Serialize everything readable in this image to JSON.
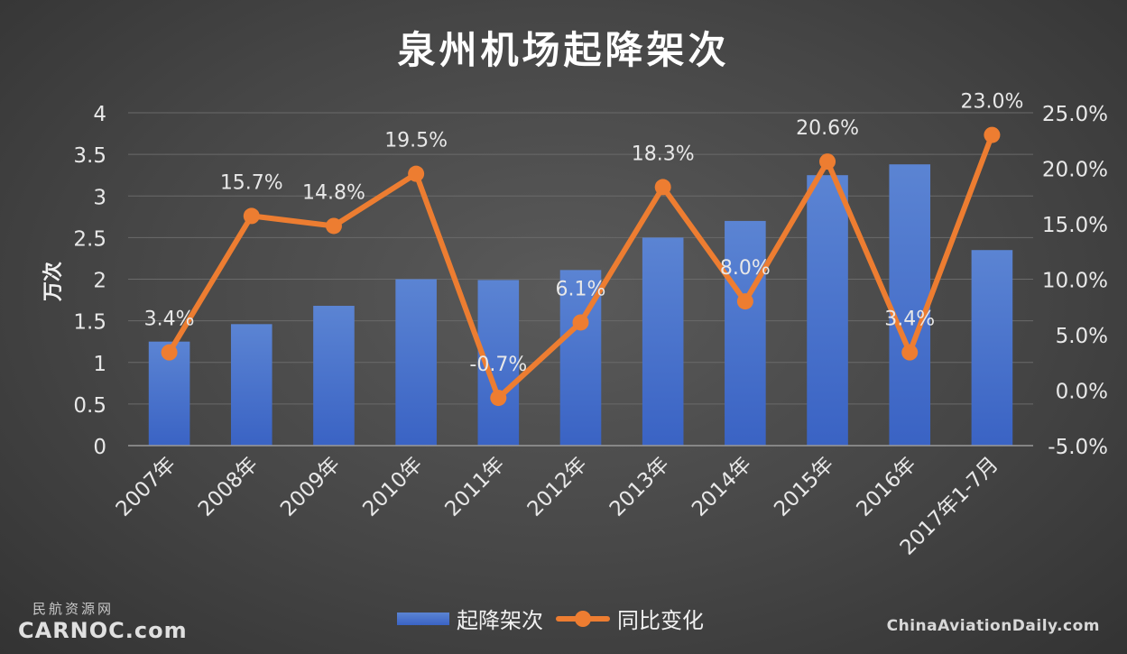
{
  "title": "泉州机场起降架次",
  "left_axis_label": "万次",
  "legend": {
    "bar": "起降架次",
    "line": "同比变化"
  },
  "watermark_left": {
    "cn": "民航资源网",
    "en": "CARNOC.com"
  },
  "watermark_right": "ChinaAviationDaily.com",
  "colors": {
    "bar_top": "#5b84d3",
    "bar_bottom": "#3a63c4",
    "line": "#ed7d31",
    "grid": "#6a6a6a",
    "text": "#e8e8e8"
  },
  "chart_data": {
    "type": "bar+line",
    "title": "泉州机场起降架次",
    "categories": [
      "2007年",
      "2008年",
      "2009年",
      "2010年",
      "2011年",
      "2012年",
      "2013年",
      "2014年",
      "2015年",
      "2016年",
      "2017年1-7月"
    ],
    "series": [
      {
        "name": "起降架次",
        "type": "bar",
        "axis": "left",
        "values": [
          1.25,
          1.46,
          1.68,
          2.0,
          1.99,
          2.11,
          2.5,
          2.7,
          3.25,
          3.38,
          2.35
        ]
      },
      {
        "name": "同比变化",
        "type": "line",
        "axis": "right",
        "values": [
          3.4,
          15.7,
          14.8,
          19.5,
          -0.7,
          6.1,
          18.3,
          8.0,
          20.6,
          3.4,
          23.0
        ],
        "labels": [
          "3.4%",
          "15.7%",
          "14.8%",
          "19.5%",
          "-0.7%",
          "6.1%",
          "18.3%",
          "8.0%",
          "20.6%",
          "3.4%",
          "23.0%"
        ]
      }
    ],
    "ylabel": "万次",
    "ylim": [
      0,
      4
    ],
    "yticks": [
      "0",
      "0.5",
      "1",
      "1.5",
      "2",
      "2.5",
      "3",
      "3.5",
      "4"
    ],
    "y2lim": [
      -5,
      25
    ],
    "y2ticks": [
      "-5.0%",
      "0.0%",
      "5.0%",
      "10.0%",
      "15.0%",
      "20.0%",
      "25.0%"
    ],
    "grid": true,
    "legend_position": "bottom"
  }
}
